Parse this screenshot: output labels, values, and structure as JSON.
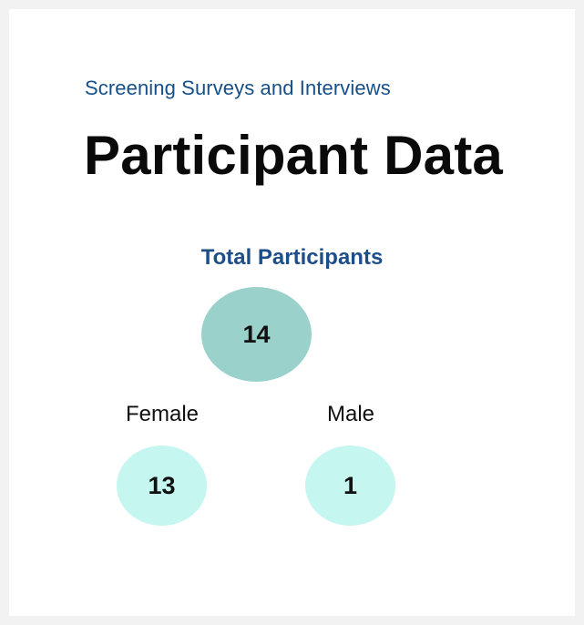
{
  "header": {
    "subtitle": "Screening Surveys and Interviews",
    "title": "Participant Data"
  },
  "participants": {
    "total_label": "Total Participants",
    "total_value": "14",
    "groups": [
      {
        "label": "Female",
        "value": "13"
      },
      {
        "label": "Male",
        "value": "1"
      }
    ]
  },
  "colors": {
    "accent_text": "#164f87",
    "total_bubble": "#9ad1cb",
    "group_bubble": "#c5f6f0"
  }
}
